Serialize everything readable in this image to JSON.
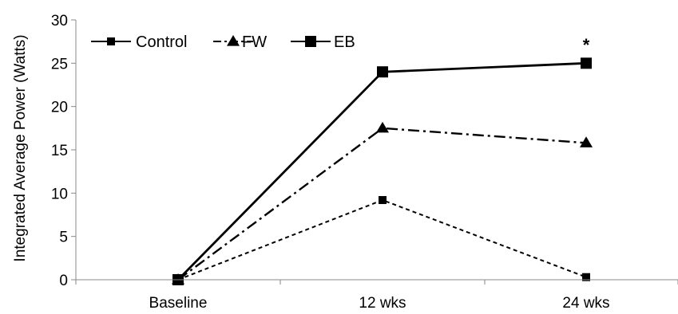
{
  "chart_data": {
    "type": "line",
    "categories": [
      "Baseline",
      "12 wks",
      "24 wks"
    ],
    "ylabel": "Integrated Average Power (Watts)",
    "ylim": [
      0,
      30
    ],
    "yticks": [
      "0",
      "5",
      "10",
      "15",
      "20",
      "25",
      "30"
    ],
    "legend_position": "top-left",
    "grid": false,
    "series": [
      {
        "name": "Control",
        "values": [
          0,
          9.2,
          0.3
        ],
        "marker": "square",
        "line_style": "dashed",
        "marker_size": "small"
      },
      {
        "name": "FW",
        "values": [
          0,
          17.5,
          15.8
        ],
        "marker": "triangle",
        "line_style": "dash-dot",
        "marker_size": "large"
      },
      {
        "name": "EB",
        "values": [
          0,
          24,
          25
        ],
        "marker": "square",
        "line_style": "solid",
        "marker_size": "large"
      }
    ],
    "annotations": [
      {
        "text": "*",
        "category": "24 wks",
        "value": 27.5
      }
    ]
  }
}
